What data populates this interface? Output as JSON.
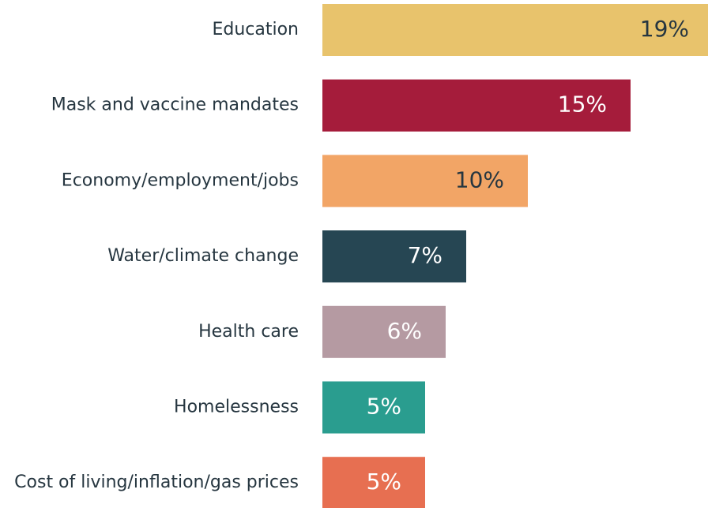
{
  "chart_data": {
    "type": "barh",
    "categories": [
      "Education",
      "Mask and vaccine mandates",
      "Economy/employment/jobs",
      "Water/climate change",
      "Health care",
      "Homelessness",
      "Cost of living/inflation/gas prices"
    ],
    "values": [
      19,
      15,
      10,
      7,
      6,
      5,
      5
    ],
    "value_labels": [
      "19%",
      "15%",
      "10%",
      "7%",
      "6%",
      "5%",
      "5%"
    ],
    "colors": [
      "#e8c36c",
      "#a51c3b",
      "#f2a566",
      "#264653",
      "#b59aa2",
      "#2a9d8f",
      "#e76f51"
    ],
    "label_colors": [
      "#263640",
      "#ffffff",
      "#263640",
      "#ffffff",
      "#ffffff",
      "#ffffff",
      "#ffffff"
    ]
  }
}
